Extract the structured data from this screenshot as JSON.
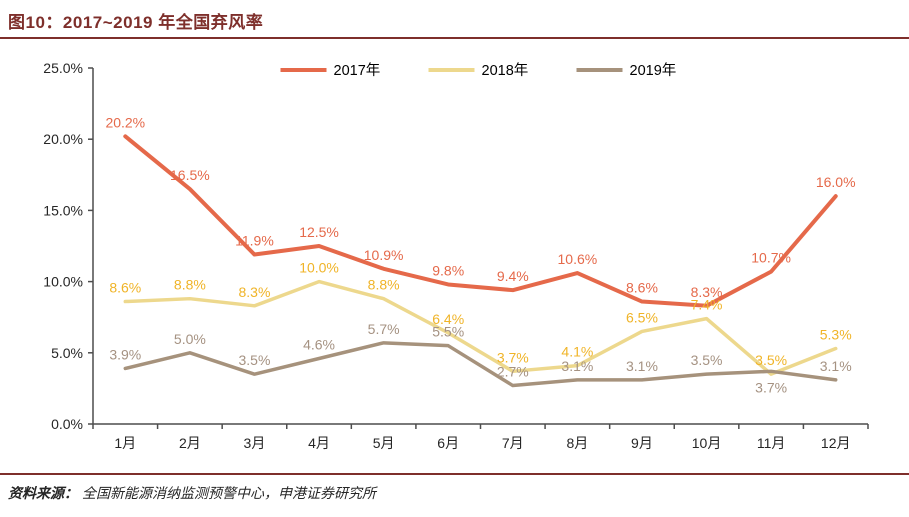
{
  "header": {
    "title": "图10：2017~2019 年全国弃风率"
  },
  "chart_data": {
    "type": "line",
    "title": "2017~2019 年全国弃风率",
    "categories": [
      "1月",
      "2月",
      "3月",
      "4月",
      "5月",
      "6月",
      "7月",
      "8月",
      "9月",
      "10月",
      "11月",
      "12月"
    ],
    "series": [
      {
        "name": "2017年",
        "color": "#E5694A",
        "label_color": "#E5694A",
        "values": [
          20.2,
          16.5,
          11.9,
          12.5,
          10.9,
          9.8,
          9.4,
          10.6,
          8.6,
          8.3,
          10.7,
          16.0
        ],
        "label_below_indices": []
      },
      {
        "name": "2018年",
        "color": "#EDD88D",
        "label_color": "#F0B428",
        "values": [
          8.6,
          8.8,
          8.3,
          10.0,
          8.8,
          6.4,
          3.7,
          4.1,
          6.5,
          7.4,
          3.5,
          5.3
        ],
        "label_below_indices": []
      },
      {
        "name": "2019年",
        "color": "#A6927C",
        "label_color": "#A59282",
        "values": [
          3.9,
          5.0,
          3.5,
          4.6,
          5.7,
          5.5,
          2.7,
          3.1,
          3.1,
          3.5,
          3.7,
          3.1
        ],
        "label_below_indices": [
          10
        ]
      }
    ],
    "xlabel": "",
    "ylabel": "",
    "ylim": [
      0,
      25
    ],
    "y_ticks": [
      "25.0%",
      "20.0%",
      "15.0%",
      "10.0%",
      "5.0%",
      "0.0%"
    ],
    "label_suffix": "%",
    "grid": false,
    "legend_position": "top-center",
    "axis_color": "#4D4D4D",
    "tick_label_color": "#262626",
    "legend_text_color": "#000000"
  },
  "footer": {
    "prefix": "资料来源：",
    "source": "全国新能源消纳监测预警中心，申港证券研究所"
  }
}
